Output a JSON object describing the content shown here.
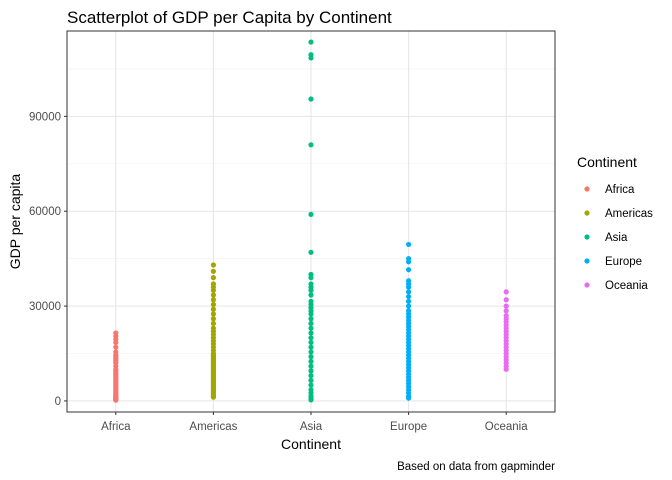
{
  "chart_data": {
    "type": "scatter",
    "title": "Scatterplot of GDP per Capita by Continent",
    "xlabel": "Continent",
    "ylabel": "GDP per capita",
    "caption": "Based on data from gapminder",
    "categories": [
      "Africa",
      "Americas",
      "Asia",
      "Europe",
      "Oceania"
    ],
    "ylim": [
      -3500,
      117000
    ],
    "yticks": [
      0,
      30000,
      60000,
      90000
    ],
    "ytick_labels": [
      "0",
      "30000",
      "60000",
      "90000"
    ],
    "grid": true,
    "legend": {
      "title": "Continent",
      "placement": "right",
      "entries": [
        "Africa",
        "Americas",
        "Asia",
        "Europe",
        "Oceania"
      ]
    },
    "colors": {
      "Africa": "#F8766D",
      "Americas": "#A3A500",
      "Asia": "#00BF7D",
      "Europe": "#00B0F6",
      "Oceania": "#E76BF3"
    },
    "series": [
      {
        "name": "Africa",
        "values": [
          241,
          400,
          600,
          800,
          1000,
          1200,
          1500,
          1800,
          2100,
          2500,
          3000,
          3500,
          4000,
          4500,
          5000,
          5500,
          6000,
          6500,
          7000,
          7500,
          8000,
          8500,
          9000,
          9500,
          10000,
          11000,
          12000,
          12500,
          13000,
          13500,
          14000,
          14500,
          15500,
          17000,
          18500,
          19500,
          20500,
          21500
        ]
      },
      {
        "name": "Americas",
        "values": [
          1200,
          1500,
          2000,
          2500,
          3000,
          3500,
          4000,
          4500,
          5000,
          5500,
          6000,
          6500,
          7000,
          7500,
          8000,
          8500,
          9000,
          9500,
          10000,
          10500,
          11000,
          11500,
          12000,
          12500,
          13000,
          13500,
          14000,
          14500,
          15000,
          16000,
          17000,
          18000,
          19000,
          20000,
          21000,
          22000,
          23000,
          24500,
          26000,
          27500,
          29000,
          30500,
          32000,
          33500,
          35000,
          36000,
          37000,
          39000,
          41000,
          43000
        ]
      },
      {
        "name": "Asia",
        "values": [
          330,
          800,
          1500,
          2500,
          3500,
          5000,
          6500,
          8000,
          9500,
          11000,
          12500,
          14000,
          15500,
          17000,
          18500,
          20000,
          21500,
          23000,
          24500,
          26000,
          27500,
          28500,
          29500,
          30500,
          31500,
          33500,
          35000,
          36000,
          37000,
          39000,
          40000,
          47000,
          59000,
          81000,
          95500,
          108500,
          109500,
          113500
        ]
      },
      {
        "name": "Europe",
        "values": [
          900,
          1500,
          2500,
          3500,
          4500,
          5500,
          6500,
          7500,
          8500,
          9500,
          10500,
          11500,
          12500,
          13500,
          14500,
          15500,
          16500,
          17500,
          18500,
          19500,
          20500,
          21500,
          22500,
          23500,
          24500,
          25500,
          26500,
          27500,
          28500,
          30000,
          31500,
          33000,
          34500,
          36000,
          37000,
          38000,
          41500,
          44000,
          45000,
          49500
        ]
      },
      {
        "name": "Oceania",
        "values": [
          10000,
          11000,
          12000,
          13000,
          14000,
          15000,
          16000,
          17000,
          18000,
          19000,
          20000,
          21000,
          22000,
          23000,
          24000,
          25000,
          26000,
          27000,
          28500,
          30000,
          32000,
          34500
        ]
      }
    ]
  }
}
